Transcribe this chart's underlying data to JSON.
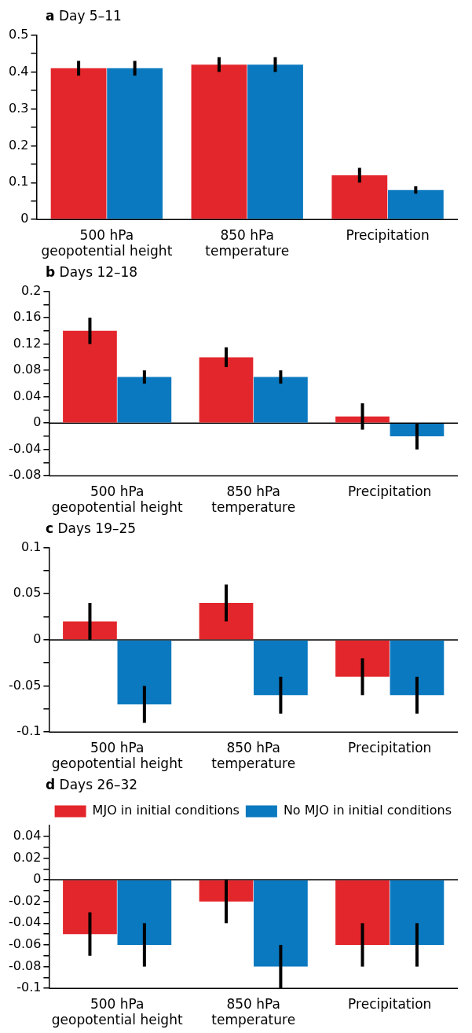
{
  "chart_data": [
    {
      "type": "bar",
      "title": "a Day 5–11",
      "categories": [
        "500 hPa\ngeopotential height",
        "850 hPa\ntemperature",
        "Precipitation"
      ],
      "series": [
        {
          "color": "#e3262b",
          "values": [
            0.41,
            0.42,
            0.12
          ],
          "errors": [
            0.02,
            0.02,
            0.02
          ]
        },
        {
          "color": "#0a79c0",
          "values": [
            0.41,
            0.42,
            0.08
          ],
          "errors": [
            0.02,
            0.02,
            0.01
          ]
        }
      ],
      "ylim": [
        0,
        0.5
      ],
      "yticks": [
        0,
        {
          "value": 0.05,
          "label": null
        },
        0.1,
        {
          "value": 0.15,
          "label": null
        },
        0.2,
        {
          "value": 0.25,
          "label": null
        },
        0.3,
        {
          "value": 0.35,
          "label": null
        },
        0.4,
        {
          "value": 0.45,
          "label": null
        },
        0.5
      ],
      "grid": false,
      "legend": false
    },
    {
      "type": "bar",
      "title": "b Days 12–18",
      "categories": [
        "500 hPa\ngeopotential height",
        "850 hPa\ntemperature",
        "Precipitation"
      ],
      "series": [
        {
          "color": "#e3262b",
          "values": [
            0.14,
            0.1,
            0.01
          ],
          "errors": [
            0.02,
            0.015,
            0.02
          ]
        },
        {
          "color": "#0a79c0",
          "values": [
            0.07,
            0.07,
            -0.02
          ],
          "errors": [
            0.01,
            0.01,
            0.02
          ]
        }
      ],
      "ylim": [
        -0.08,
        0.2
      ],
      "yticks": [
        -0.08,
        {
          "value": -0.06,
          "label": null
        },
        -0.04,
        {
          "value": -0.02,
          "label": null
        },
        0,
        {
          "value": 0.02,
          "label": null
        },
        0.04,
        {
          "value": 0.06,
          "label": null
        },
        0.08,
        {
          "value": 0.1,
          "label": null
        },
        0.12,
        {
          "value": 0.14,
          "label": null
        },
        0.16,
        {
          "value": 0.18,
          "label": null
        },
        0.2
      ],
      "ref_lines": [
        {
          "axis": "y",
          "value": 0
        }
      ],
      "grid": false,
      "legend": false
    },
    {
      "type": "bar",
      "title": "c Days 19–25",
      "categories": [
        "500 hPa\ngeopotential height",
        "850 hPa\ntemperature",
        "Precipitation"
      ],
      "series": [
        {
          "color": "#e3262b",
          "values": [
            0.02,
            0.04,
            -0.04
          ],
          "errors": [
            0.02,
            0.02,
            0.02
          ]
        },
        {
          "color": "#0a79c0",
          "values": [
            -0.07,
            -0.06,
            -0.06
          ],
          "errors": [
            0.02,
            0.02,
            0.02
          ]
        }
      ],
      "ylim": [
        -0.1,
        0.1
      ],
      "yticks": [
        -0.1,
        {
          "value": -0.075,
          "label": null
        },
        -0.05,
        {
          "value": -0.025,
          "label": null
        },
        0,
        {
          "value": 0.025,
          "label": null
        },
        0.05,
        {
          "value": 0.075,
          "label": null
        },
        0.1
      ],
      "ref_lines": [
        {
          "axis": "y",
          "value": 0
        }
      ],
      "grid": false,
      "legend": false
    },
    {
      "type": "bar",
      "title": "d Days 26–32",
      "categories": [
        "500 hPa\ngeopotential height",
        "850 hPa\ntemperature",
        "Precipitation"
      ],
      "series": [
        {
          "name": "MJO in initial conditions",
          "color": "#e3262b",
          "values": [
            -0.05,
            -0.02,
            -0.06
          ],
          "errors": [
            0.02,
            0.02,
            0.02
          ]
        },
        {
          "name": "No MJO in initial conditions",
          "color": "#0a79c0",
          "values": [
            -0.06,
            -0.08,
            -0.06
          ],
          "errors": [
            0.02,
            0.02,
            0.02
          ]
        }
      ],
      "ylim": [
        -0.1,
        0.05
      ],
      "yticks": [
        -0.1,
        {
          "value": -0.09,
          "label": null
        },
        -0.08,
        {
          "value": -0.07,
          "label": null
        },
        -0.06,
        {
          "value": -0.05,
          "label": null
        },
        -0.04,
        {
          "value": -0.03,
          "label": null
        },
        -0.02,
        {
          "value": -0.01,
          "label": null
        },
        0,
        {
          "value": 0.01,
          "label": null
        },
        0.02,
        {
          "value": 0.03,
          "label": null
        },
        0.04
      ],
      "ref_lines": [
        {
          "axis": "y",
          "value": 0
        }
      ],
      "grid": false,
      "legend": "top right"
    }
  ]
}
